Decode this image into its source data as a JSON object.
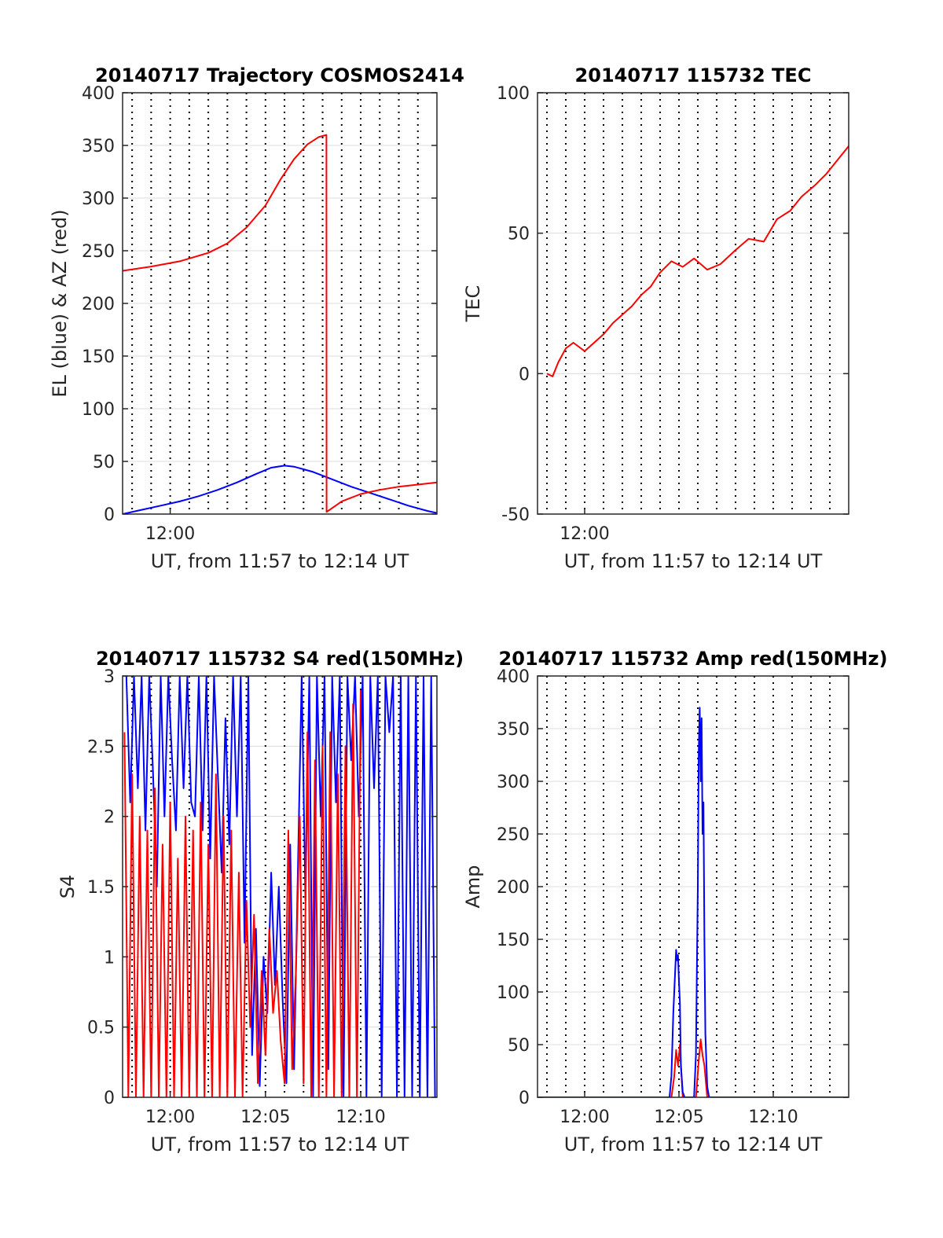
{
  "figure": {
    "background": "#ffffff",
    "colors": {
      "el": "#0000ff",
      "az": "#ff0000",
      "grid": "#000000",
      "axis": "#262626"
    }
  },
  "chart_data": [
    {
      "type": "line",
      "title": "20140717 Trajectory COSMOS2414",
      "xlabel": "UT, from 11:57 to 12:14 UT",
      "ylabel": "EL (blue) & AZ (red)",
      "xlim_min": [
        717.5,
        734
      ],
      "ylim": [
        0,
        400
      ],
      "yticks": [
        0,
        50,
        100,
        150,
        200,
        250,
        300,
        350,
        400
      ],
      "xticks": [
        {
          "value": 720,
          "label": "12:00"
        }
      ],
      "grid_minutes": [
        718,
        719,
        720,
        721,
        722,
        723,
        724,
        725,
        726,
        727,
        728,
        729,
        730,
        731,
        732,
        733
      ],
      "series": [
        {
          "color": "#0000ff",
          "x": [
            717.5,
            718.5,
            719.5,
            720.5,
            721.5,
            722.5,
            723.5,
            724.5,
            725.3,
            726.0,
            726.5,
            727.5,
            728.5,
            729.5,
            730.5,
            731.5,
            732.5,
            733.5,
            734.0
          ],
          "y": [
            0,
            4,
            8,
            12,
            17,
            23,
            30,
            38,
            44,
            46,
            45,
            40,
            33,
            26,
            20,
            14,
            8,
            3,
            1
          ]
        },
        {
          "color": "#ff0000",
          "x": [
            717.5,
            719,
            720.5,
            722,
            723,
            724,
            725,
            725.8,
            726.5,
            727.2,
            727.8,
            728.2,
            728.21,
            729,
            730,
            731,
            732,
            733,
            734
          ],
          "y": [
            231,
            235,
            240,
            248,
            257,
            272,
            293,
            318,
            337,
            351,
            358,
            360,
            2,
            12,
            19,
            23,
            26,
            28,
            30
          ]
        }
      ]
    },
    {
      "type": "line",
      "title": "20140717 115732 TEC",
      "xlabel": "UT, from 11:57 to 12:14 UT",
      "ylabel": "TEC",
      "xlim_min": [
        717.5,
        734
      ],
      "ylim": [
        -50,
        100
      ],
      "yticks": [
        -50,
        0,
        50,
        100
      ],
      "xticks": [
        {
          "value": 720,
          "label": "12:00"
        }
      ],
      "grid_minutes": [
        718,
        719,
        720,
        721,
        722,
        723,
        724,
        725,
        726,
        727,
        728,
        729,
        730,
        731,
        732,
        733
      ],
      "series": [
        {
          "color": "#ff0000",
          "x": [
            718,
            718.3,
            718.6,
            719,
            719.4,
            720,
            720.5,
            721,
            721.5,
            722,
            722.5,
            723,
            723.5,
            724,
            724.6,
            725.2,
            725.8,
            726.5,
            727.2,
            728,
            728.7,
            729.5,
            730.2,
            730.9,
            731.5,
            732.2,
            732.8,
            733.4,
            734
          ],
          "y": [
            0,
            -1,
            4,
            9,
            11,
            8,
            11,
            14,
            18,
            21,
            24,
            28,
            31,
            36,
            40,
            38,
            41,
            37,
            39,
            44,
            48,
            47,
            55,
            58,
            63,
            67,
            71,
            76,
            81
          ]
        }
      ]
    },
    {
      "type": "line",
      "title": "20140717 115732 S4 red(150MHz)",
      "xlabel": "UT, from 11:57 to 12:14 UT",
      "ylabel": "S4",
      "xlim_min": [
        717.5,
        734
      ],
      "ylim": [
        0,
        3
      ],
      "yticks": [
        0,
        0.5,
        1,
        1.5,
        2,
        2.5,
        3
      ],
      "xticks": [
        {
          "value": 720,
          "label": "12:00"
        },
        {
          "value": 725,
          "label": "12:05"
        },
        {
          "value": 730,
          "label": "12:10"
        }
      ],
      "grid_minutes": [
        718,
        719,
        720,
        721,
        722,
        723,
        724,
        725,
        726,
        727,
        728,
        729,
        730,
        731,
        732,
        733
      ],
      "series": [
        {
          "color": "#0000ff",
          "x": [
            717.7,
            717.9,
            718.1,
            718.3,
            718.5,
            718.7,
            718.9,
            719.1,
            719.3,
            719.5,
            719.7,
            719.9,
            720.1,
            720.3,
            720.5,
            720.7,
            720.9,
            721.1,
            721.3,
            721.5,
            721.7,
            721.9,
            722.1,
            722.3,
            722.5,
            722.7,
            722.9,
            723.1,
            723.3,
            723.5,
            723.7,
            723.9,
            724.1,
            724.3,
            724.5,
            724.7,
            724.9,
            725.1,
            725.3,
            725.5,
            725.7,
            725.9,
            726.1,
            726.3,
            726.5,
            726.7,
            726.9,
            727.1,
            727.3,
            727.5,
            727.7,
            727.9,
            728.1,
            728.3,
            728.5,
            728.7,
            728.9,
            729.1,
            729.3,
            729.5,
            729.7,
            729.9,
            730.1,
            730.3,
            730.5,
            730.7,
            730.9,
            731.1,
            731.3,
            731.5,
            731.7,
            731.9,
            732.1,
            732.3,
            732.5,
            732.7,
            732.9,
            733.1,
            733.3,
            733.5,
            733.7,
            733.9
          ],
          "y": [
            3,
            2.1,
            3,
            2.2,
            3,
            1.9,
            3,
            2.3,
            1.5,
            3,
            2.0,
            3,
            2.4,
            1.9,
            3,
            2.2,
            3,
            2.1,
            2.0,
            3,
            1.9,
            3,
            1.7,
            3,
            2.3,
            1.6,
            2.7,
            1.8,
            3,
            2.0,
            3,
            1.1,
            3,
            0.3,
            1.2,
            0.08,
            1.0,
            0.6,
            1.6,
            0.8,
            1.5,
            0.7,
            0.1,
            1.8,
            0.2,
            1.6,
            3,
            1.4,
            3,
            0,
            3,
            2.0,
            3,
            0.2,
            3,
            2.1,
            3,
            0,
            3,
            2.4,
            3,
            2.0,
            3,
            0,
            3,
            2.2,
            3,
            0,
            3,
            2.6,
            3,
            0,
            3,
            0,
            3,
            0,
            3,
            0,
            3,
            0,
            3,
            0
          ]
        },
        {
          "color": "#ff0000",
          "x": [
            717.6,
            717.8,
            718.0,
            718.2,
            718.4,
            718.6,
            718.8,
            719.0,
            719.2,
            719.4,
            719.6,
            719.8,
            720.0,
            720.2,
            720.4,
            720.6,
            720.8,
            721.0,
            721.2,
            721.4,
            721.6,
            721.8,
            722.0,
            722.2,
            722.4,
            722.6,
            722.8,
            723.0,
            723.2,
            723.4,
            723.6,
            723.8,
            724.0,
            724.2,
            724.4,
            724.6,
            724.8,
            725.0,
            725.2,
            725.4,
            725.6,
            725.8,
            726.0,
            726.2,
            726.4,
            726.6,
            726.8,
            727.0,
            727.2,
            727.4,
            727.6,
            727.8,
            728.0,
            728.2,
            728.4,
            728.6,
            728.8,
            729.0,
            729.2,
            729.4,
            729.6,
            729.8,
            730.0
          ],
          "y": [
            2.6,
            0,
            2.3,
            0,
            2.0,
            0,
            1.9,
            0,
            2.2,
            0,
            1.8,
            0,
            2.1,
            0,
            1.7,
            0,
            2.0,
            0,
            1.9,
            0,
            2.1,
            0,
            1.8,
            0,
            2.3,
            0,
            2.0,
            0,
            1.9,
            0,
            1.6,
            0,
            1.4,
            0.5,
            1.3,
            0.1,
            0.9,
            0.3,
            1.2,
            0.6,
            0.9,
            0.4,
            0.1,
            1.9,
            0.2,
            0.9,
            2.0,
            0.1,
            2.6,
            0,
            2.4,
            0,
            2.5,
            0,
            2.6,
            0,
            2.3,
            0,
            2.5,
            0,
            2.8,
            0,
            2.9
          ]
        }
      ]
    },
    {
      "type": "line",
      "title": "20140717 115732 Amp red(150MHz)",
      "xlabel": "UT, from 11:57 to 12:14 UT",
      "ylabel": "Amp",
      "xlim_min": [
        717.5,
        734
      ],
      "ylim": [
        0,
        400
      ],
      "yticks": [
        0,
        50,
        100,
        150,
        200,
        250,
        300,
        350,
        400
      ],
      "xticks": [
        {
          "value": 720,
          "label": "12:00"
        },
        {
          "value": 725,
          "label": "12:05"
        },
        {
          "value": 730,
          "label": "12:10"
        }
      ],
      "grid_minutes": [
        718,
        719,
        720,
        721,
        722,
        723,
        724,
        725,
        726,
        727,
        728,
        729,
        730,
        731,
        732,
        733
      ],
      "series": [
        {
          "color": "#ff0000",
          "x": [
            717.5,
            724.6,
            724.75,
            724.85,
            724.95,
            725.05,
            725.2,
            725.9,
            726.05,
            726.15,
            726.25,
            726.35,
            726.5,
            734
          ],
          "y": [
            0,
            0,
            20,
            45,
            30,
            50,
            0,
            0,
            35,
            55,
            40,
            30,
            0,
            0
          ]
        },
        {
          "color": "#0000ff",
          "x": [
            717.5,
            724.5,
            724.6,
            724.7,
            724.8,
            724.85,
            724.9,
            724.95,
            725.0,
            725.05,
            725.1,
            725.2,
            725.3,
            725.8,
            725.9,
            726.0,
            726.05,
            726.1,
            726.15,
            726.2,
            726.25,
            726.3,
            726.35,
            726.4,
            726.5,
            726.6,
            734
          ],
          "y": [
            0,
            0,
            20,
            80,
            120,
            140,
            130,
            135,
            110,
            90,
            30,
            5,
            0,
            0,
            40,
            200,
            330,
            370,
            300,
            360,
            250,
            280,
            150,
            60,
            10,
            0,
            0
          ]
        }
      ]
    }
  ]
}
